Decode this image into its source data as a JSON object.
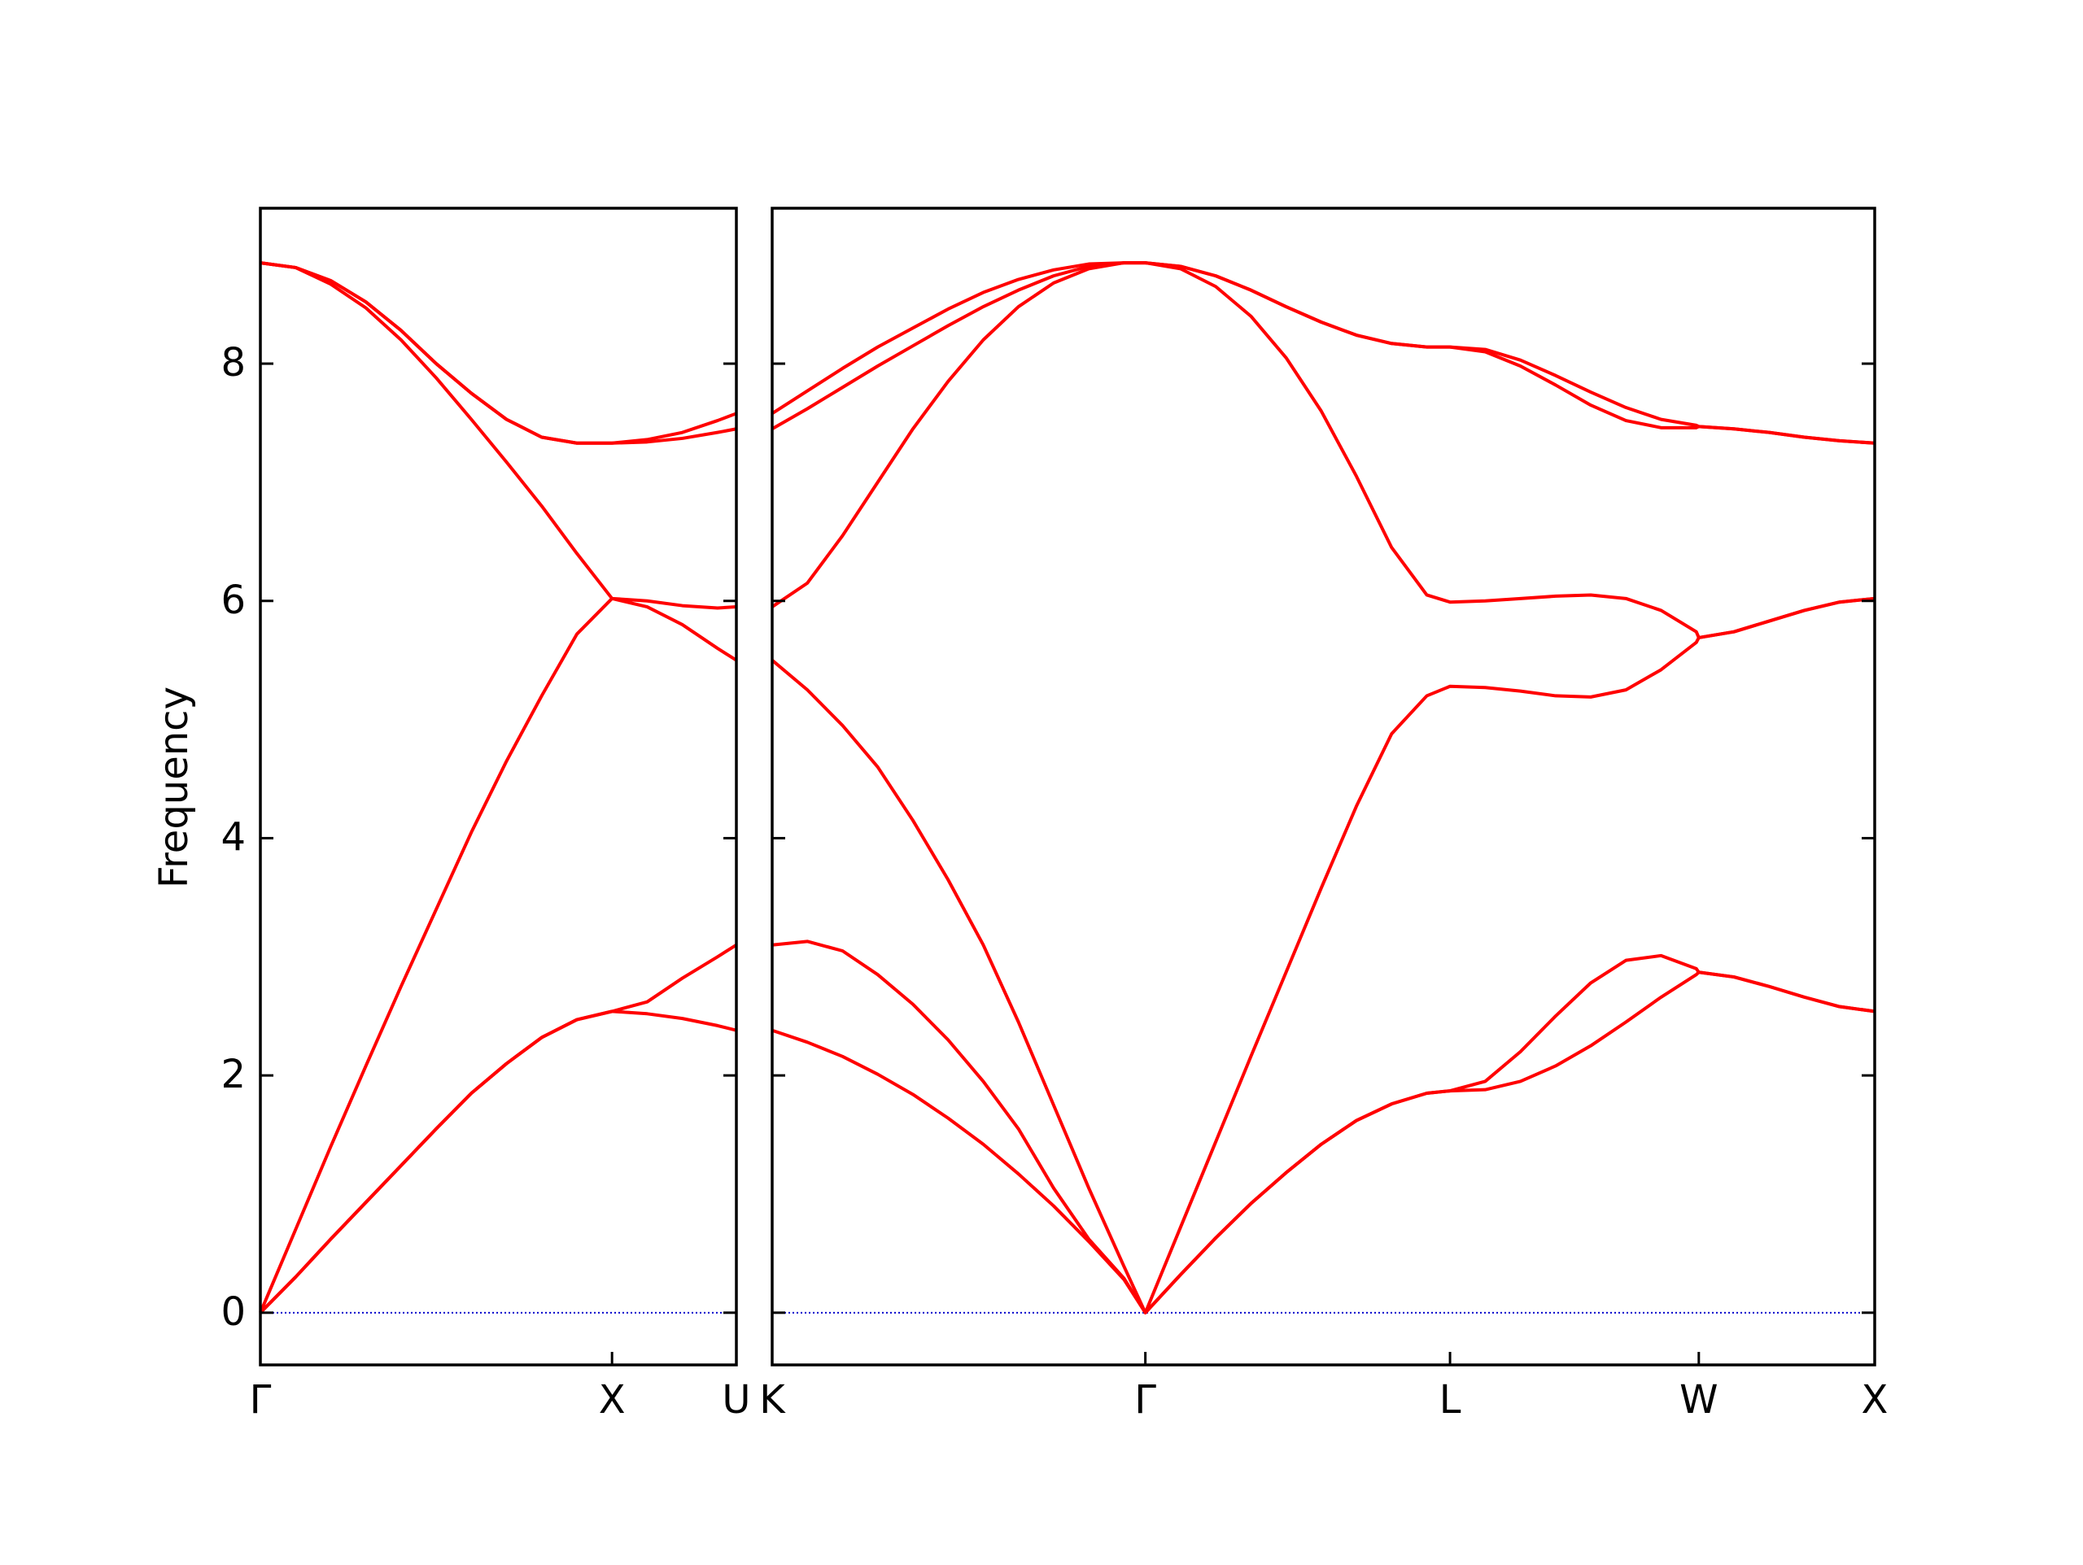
{
  "chart_data": {
    "type": "line",
    "ylabel": "Frequency",
    "ylim": [
      -0.44,
      9.31
    ],
    "yticks": [
      0,
      2,
      4,
      6,
      8
    ],
    "hline": {
      "value": 0,
      "color": "#0000cc"
    },
    "panels": [
      {
        "xlim": [
          0,
          1.3536
        ],
        "xticks": [
          {
            "value": 0,
            "label": "Γ"
          },
          {
            "value": 1,
            "label": "X"
          },
          {
            "value": 1.3536,
            "label": "U"
          }
        ],
        "x": [
          0,
          0.1,
          0.2,
          0.3,
          0.4,
          0.5,
          0.6,
          0.7,
          0.8,
          0.9,
          1.0,
          1.1,
          1.2,
          1.3,
          1.3536
        ],
        "series": [
          {
            "color": "#ff0000",
            "values": [
              0,
              0.3,
              0.62,
              0.93,
              1.24,
              1.55,
              1.85,
              2.1,
              2.32,
              2.47,
              2.54,
              2.52,
              2.48,
              2.42,
              2.38
            ]
          },
          {
            "color": "#ff0000",
            "values": [
              0,
              0.3,
              0.62,
              0.93,
              1.24,
              1.55,
              1.85,
              2.1,
              2.32,
              2.47,
              2.54,
              2.62,
              2.82,
              3.0,
              3.1
            ]
          },
          {
            "color": "#ff0000",
            "values": [
              0,
              0.7,
              1.4,
              2.08,
              2.75,
              3.4,
              4.05,
              4.65,
              5.2,
              5.72,
              6.02,
              5.95,
              5.8,
              5.6,
              5.5
            ]
          },
          {
            "color": "#ff0000",
            "values": [
              8.85,
              8.81,
              8.67,
              8.47,
              8.2,
              7.88,
              7.53,
              7.17,
              6.8,
              6.4,
              6.02,
              6.0,
              5.96,
              5.94,
              5.95
            ]
          },
          {
            "color": "#ff0000",
            "values": [
              8.85,
              8.81,
              8.7,
              8.52,
              8.28,
              8.0,
              7.75,
              7.53,
              7.38,
              7.33,
              7.33,
              7.34,
              7.37,
              7.42,
              7.45
            ]
          },
          {
            "color": "#ff0000",
            "values": [
              8.85,
              8.81,
              8.7,
              8.52,
              8.28,
              8.0,
              7.75,
              7.53,
              7.38,
              7.33,
              7.33,
              7.36,
              7.42,
              7.52,
              7.58
            ]
          }
        ]
      },
      {
        "xlim": [
          1.3536,
          4.4874
        ],
        "xticks": [
          {
            "value": 1.3536,
            "label": "K"
          },
          {
            "value": 2.4143,
            "label": "Γ"
          },
          {
            "value": 3.2803,
            "label": "L"
          },
          {
            "value": 3.9874,
            "label": "W"
          },
          {
            "value": 4.4874,
            "label": "X"
          }
        ],
        "x": [
          1.3536,
          1.4536,
          1.5536,
          1.6536,
          1.7536,
          1.8536,
          1.9536,
          2.0536,
          2.1536,
          2.2536,
          2.3536,
          2.4143,
          2.5143,
          2.6143,
          2.7143,
          2.8143,
          2.9143,
          3.0143,
          3.1143,
          3.2143,
          3.2803,
          3.3803,
          3.4803,
          3.5803,
          3.6803,
          3.7803,
          3.8803,
          3.9803,
          3.9874,
          4.0874,
          4.1874,
          4.2874,
          4.3874,
          4.4874
        ],
        "series": [
          {
            "color": "#ff0000",
            "values": [
              2.38,
              2.28,
              2.16,
              2.01,
              1.84,
              1.64,
              1.42,
              1.17,
              0.9,
              0.6,
              0.28,
              0,
              0.32,
              0.63,
              0.92,
              1.18,
              1.42,
              1.62,
              1.76,
              1.85,
              1.87,
              1.88,
              1.95,
              2.08,
              2.25,
              2.45,
              2.66,
              2.85,
              2.87,
              2.83,
              2.75,
              2.66,
              2.58,
              2.54
            ]
          },
          {
            "color": "#ff0000",
            "values": [
              3.1,
              3.13,
              3.05,
              2.85,
              2.6,
              2.3,
              1.95,
              1.55,
              1.05,
              0.62,
              0.29,
              0,
              0.32,
              0.63,
              0.92,
              1.18,
              1.42,
              1.62,
              1.76,
              1.85,
              1.87,
              1.95,
              2.2,
              2.5,
              2.78,
              2.97,
              3.01,
              2.9,
              2.87,
              2.83,
              2.75,
              2.66,
              2.58,
              2.54
            ]
          },
          {
            "color": "#ff0000",
            "values": [
              5.5,
              5.25,
              4.95,
              4.6,
              4.15,
              3.65,
              3.1,
              2.45,
              1.75,
              1.05,
              0.39,
              0,
              0.72,
              1.44,
              2.16,
              2.87,
              3.58,
              4.27,
              4.88,
              5.2,
              5.28,
              5.27,
              5.24,
              5.2,
              5.19,
              5.25,
              5.42,
              5.65,
              5.69,
              5.74,
              5.83,
              5.92,
              5.99,
              6.02
            ]
          },
          {
            "color": "#ff0000",
            "values": [
              5.95,
              6.15,
              6.55,
              7.0,
              7.45,
              7.85,
              8.2,
              8.48,
              8.68,
              8.8,
              8.85,
              8.85,
              8.8,
              8.65,
              8.4,
              8.05,
              7.6,
              7.05,
              6.45,
              6.05,
              5.99,
              6.0,
              6.02,
              6.04,
              6.05,
              6.02,
              5.92,
              5.74,
              5.69,
              5.74,
              5.83,
              5.92,
              5.99,
              6.02
            ]
          },
          {
            "color": "#ff0000",
            "values": [
              7.45,
              7.62,
              7.8,
              7.98,
              8.15,
              8.32,
              8.48,
              8.62,
              8.74,
              8.82,
              8.85,
              8.85,
              8.82,
              8.74,
              8.62,
              8.48,
              8.35,
              8.24,
              8.17,
              8.14,
              8.14,
              8.1,
              7.98,
              7.82,
              7.65,
              7.52,
              7.46,
              7.46,
              7.47,
              7.45,
              7.42,
              7.38,
              7.35,
              7.33
            ]
          },
          {
            "color": "#ff0000",
            "values": [
              7.58,
              7.77,
              7.96,
              8.14,
              8.3,
              8.46,
              8.6,
              8.71,
              8.79,
              8.84,
              8.85,
              8.85,
              8.82,
              8.74,
              8.62,
              8.48,
              8.35,
              8.24,
              8.17,
              8.14,
              8.14,
              8.12,
              8.03,
              7.9,
              7.76,
              7.63,
              7.53,
              7.48,
              7.47,
              7.45,
              7.42,
              7.38,
              7.35,
              7.33
            ]
          }
        ]
      }
    ]
  }
}
